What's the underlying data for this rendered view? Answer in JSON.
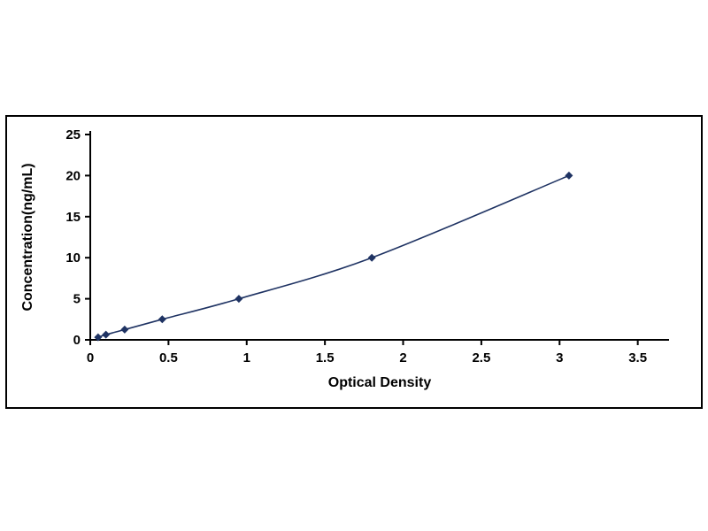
{
  "chart_data": {
    "type": "line",
    "title": "",
    "xlabel": "Optical Density",
    "ylabel": "Concentration(ng/mL)",
    "x": [
      0.05,
      0.1,
      0.22,
      0.46,
      0.95,
      1.8,
      3.06
    ],
    "y": [
      0.31,
      0.63,
      1.25,
      2.5,
      5,
      10,
      20
    ],
    "xlim": [
      0,
      3.7
    ],
    "ylim": [
      0,
      25
    ],
    "x_ticks": [
      0,
      0.5,
      1,
      1.5,
      2,
      2.5,
      3,
      3.5
    ],
    "x_tick_labels": [
      "0",
      "0.5",
      "1",
      "1.5",
      "2",
      "2.5",
      "3",
      "3.5"
    ],
    "y_ticks": [
      0,
      5,
      10,
      15,
      20,
      25
    ],
    "y_tick_labels": [
      "0",
      "5",
      "10",
      "15",
      "20",
      "25"
    ],
    "series_color": "#1f3363",
    "axis_color": "#000000",
    "marker": "diamond",
    "grid": false,
    "legend": null
  }
}
